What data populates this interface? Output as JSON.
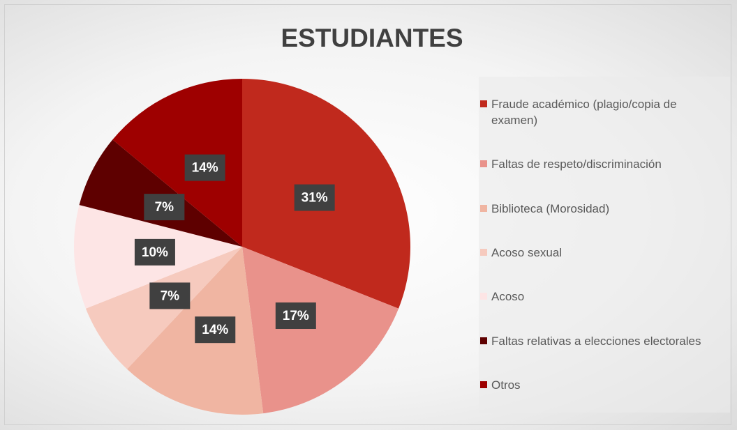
{
  "chart_data": {
    "type": "pie",
    "title": "ESTUDIANTES",
    "categories": [
      "Fraude académico (plagio/copia de examen)",
      "Faltas de respeto/discriminación",
      "Biblioteca (Morosidad)",
      "Acoso sexual",
      "Acoso",
      "Faltas relativas a elecciones electorales",
      "Otros"
    ],
    "values": [
      31,
      17,
      14,
      7,
      10,
      7,
      14
    ],
    "value_labels": [
      "31%",
      "17%",
      "14%",
      "7%",
      "10%",
      "7%",
      "14%"
    ],
    "colors": [
      "#c0291d",
      "#e9928b",
      "#f0b5a2",
      "#f6cabe",
      "#fde5e5",
      "#5e0000",
      "#9e0000"
    ],
    "legend": "right"
  }
}
